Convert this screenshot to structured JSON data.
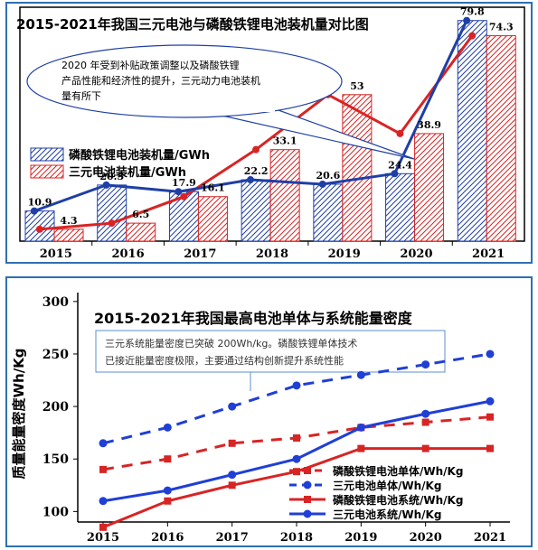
{
  "chart_data": [
    {
      "type": "bar+line",
      "title": "2015-2021年我国三元电池与磷酸铁锂电池装机量对比图",
      "categories": [
        "2015",
        "2016",
        "2017",
        "2018",
        "2019",
        "2020",
        "2021"
      ],
      "series": [
        {
          "name": "磷酸铁锂电池装机量/GWh",
          "values": [
            10.9,
            20.3,
            17.9,
            22.2,
            20.6,
            24.4,
            79.8
          ],
          "color": "#1f3fa6",
          "style": "hatched-bar+line"
        },
        {
          "name": "三元电池装机量/GWh",
          "values": [
            4.3,
            6.5,
            16.1,
            33.1,
            53,
            38.9,
            74.3
          ],
          "color": "#d82424",
          "style": "hatched-bar+line"
        }
      ],
      "data_labels": {
        "lfp": [
          "10.9",
          "20.3",
          "17.9",
          "22.2",
          "20.6",
          "24.4",
          "79.8"
        ],
        "ncm": [
          "4.3",
          "6.5",
          "16.1",
          "33.1",
          "53",
          "38.9",
          "74.3"
        ]
      },
      "ylim": [
        0,
        82
      ],
      "legend_position": "left",
      "annotation": "2020 年受到补贴政策调整以及磷酸铁锂产品性能和经济性的提升，三元动力电池装机量有所下"
    },
    {
      "type": "line",
      "title": "2015-2021年我国最高电池单体与系统能量密度",
      "ylabel": "质量能量密度Wh/Kg",
      "categories": [
        "2015",
        "2016",
        "2017",
        "2018",
        "2019",
        "2020",
        "2021"
      ],
      "y_ticks": [
        "100",
        "150",
        "200",
        "250",
        "300"
      ],
      "ylim": [
        90,
        305
      ],
      "series": [
        {
          "name": "磷酸铁锂电池单体/Wh/Kg",
          "values": [
            140,
            150,
            165,
            170,
            180,
            185,
            190
          ],
          "color": "#d82424",
          "dash": "dashed",
          "marker": "square"
        },
        {
          "name": "三元电池单体/Wh/Kg",
          "values": [
            165,
            180,
            200,
            220,
            230,
            240,
            250
          ],
          "color": "#1f3fd6",
          "dash": "dashed",
          "marker": "circle"
        },
        {
          "name": "磷酸铁锂电池系统/Wh/Kg",
          "values": [
            85,
            110,
            125,
            138,
            160,
            160,
            160
          ],
          "color": "#d82424",
          "dash": "solid",
          "marker": "square"
        },
        {
          "name": "三元电池系统/Wh/Kg",
          "values": [
            110,
            120,
            135,
            150,
            180,
            193,
            205
          ],
          "color": "#1f3fd6",
          "dash": "solid",
          "marker": "circle"
        }
      ],
      "legend_position": "bottom-right",
      "annotation_lines": [
        "三元系统能量密度已突破 200Wh/kg。磷酸铁锂单体技术",
        "已接近能量密度极限，主要通过结构创新提升系统性能"
      ]
    }
  ]
}
